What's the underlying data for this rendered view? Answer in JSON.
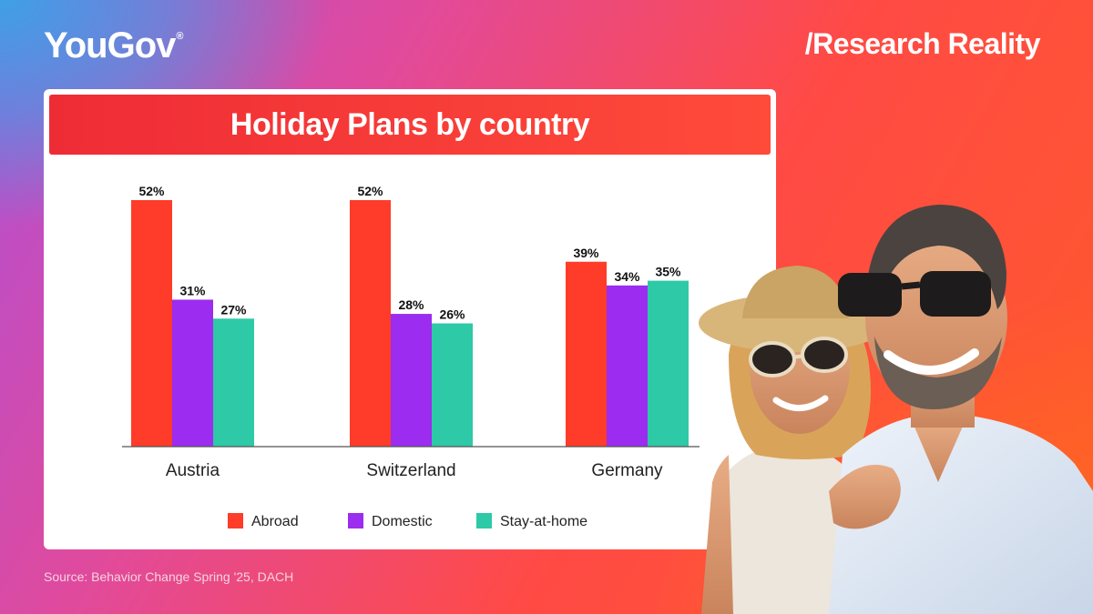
{
  "brand": {
    "logo": "YouGov",
    "trademark": "®",
    "tagline": "/Research Reality"
  },
  "source": "Source: Behavior Change Spring '25, DACH",
  "colors": {
    "abroad": "#ff3b2a",
    "domestic": "#9b2cf0",
    "stay": "#2ec9a6"
  },
  "photo": {
    "icon": "couple-in-sunglasses-photo"
  },
  "chart_data": {
    "type": "bar",
    "title": "Holiday Plans by country",
    "categories": [
      "Austria",
      "Switzerland",
      "Germany"
    ],
    "series": [
      {
        "name": "Abroad",
        "values": [
          52,
          52,
          39
        ],
        "labels": [
          "52%",
          "52%",
          "39%"
        ],
        "color": "#ff3b2a"
      },
      {
        "name": "Domestic",
        "values": [
          31,
          28,
          34
        ],
        "labels": [
          "31%",
          "28%",
          "34%"
        ],
        "color": "#9b2cf0"
      },
      {
        "name": "Stay-at-home",
        "values": [
          27,
          26,
          35
        ],
        "labels": [
          "27%",
          "26%",
          "35%"
        ],
        "color": "#2ec9a6"
      }
    ],
    "ylim": [
      0,
      52
    ],
    "grid": false,
    "legend": "bottom-center"
  }
}
